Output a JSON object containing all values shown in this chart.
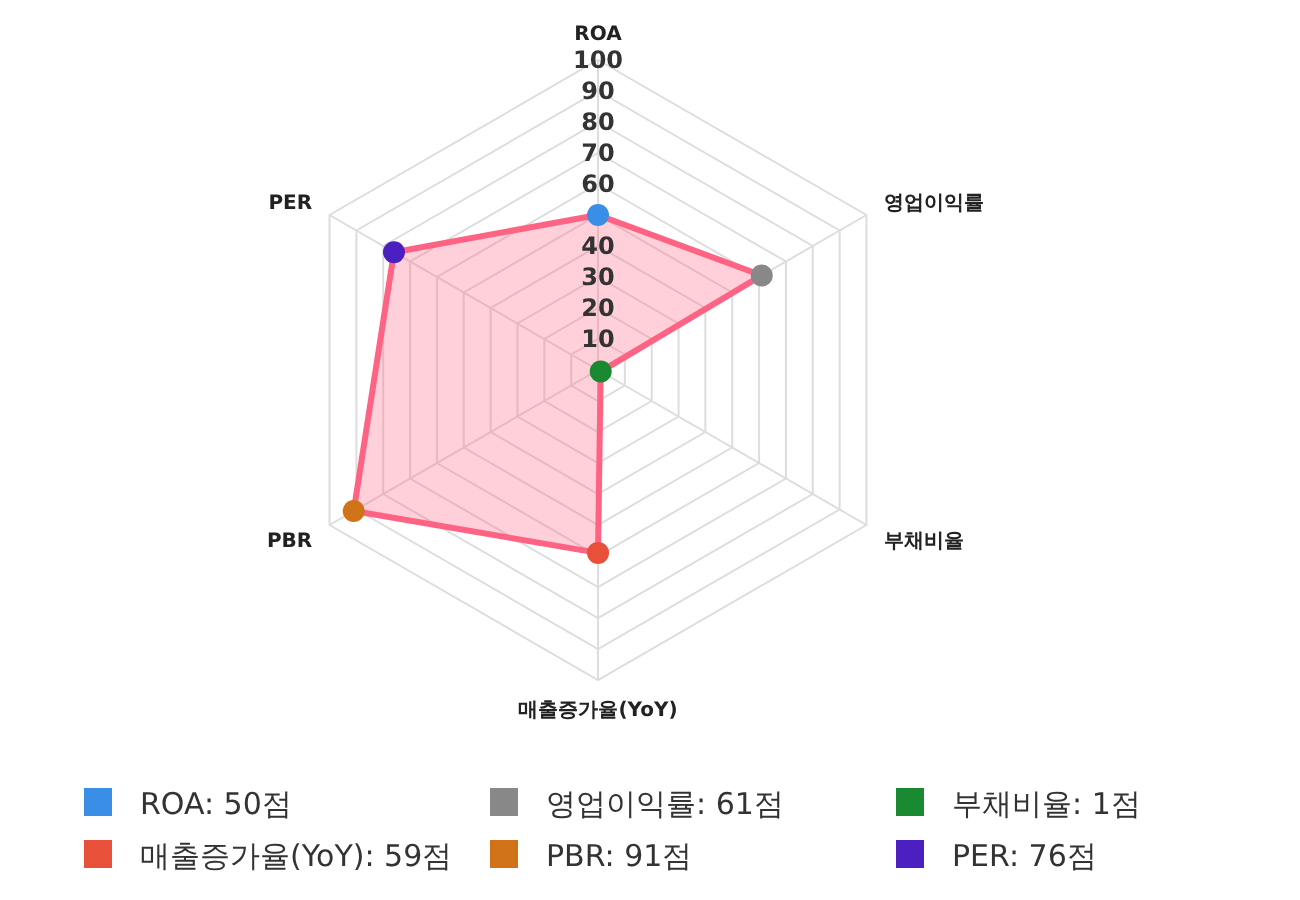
{
  "chart_data": {
    "type": "radar",
    "categories": [
      "ROA",
      "영업이익률",
      "부채비율",
      "매출증가율(YoY)",
      "PBR",
      "PER"
    ],
    "series": [
      {
        "color": "#ff6384",
        "values": [
          50,
          61,
          1,
          59,
          91,
          76
        ],
        "colors": [
          "#3a8ee6",
          "#888888",
          "#1a8a32",
          "#e8503a",
          "#d07318",
          "#4b1fc0"
        ]
      }
    ],
    "ylim": [
      0,
      100
    ],
    "yticks": [
      10,
      20,
      30,
      40,
      60,
      70,
      80,
      90,
      100
    ],
    "grid": true,
    "marker": "circle",
    "annotations": [
      "ROA: 50점",
      "영업이익률: 61점",
      "부채비율: 1점",
      "매출증가율(YoY): 59점",
      "PBR: 91점",
      "PER: 76점"
    ]
  }
}
